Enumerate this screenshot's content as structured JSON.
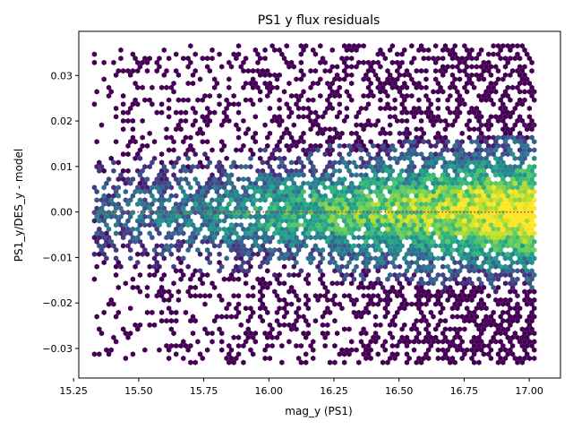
{
  "chart_data": {
    "type": "hexbin",
    "title": "PS1 y flux residuals",
    "xlabel": "mag_y (PS1)",
    "ylabel": "PS1_y/DES_y - model",
    "xlim": [
      15.27,
      17.12
    ],
    "ylim": [
      -0.0365,
      0.0397
    ],
    "x_ticks": [
      15.25,
      15.5,
      15.75,
      16.0,
      16.25,
      16.5,
      16.75,
      17.0
    ],
    "x_tick_labels": [
      "15.25",
      "15.50",
      "15.75",
      "16.00",
      "16.25",
      "16.50",
      "16.75",
      "17.00"
    ],
    "y_ticks": [
      -0.03,
      -0.02,
      -0.01,
      0.0,
      0.01,
      0.02,
      0.03
    ],
    "y_tick_labels": [
      "−0.03",
      "−0.02",
      "−0.01",
      "0.00",
      "0.01",
      "0.02",
      "0.03"
    ],
    "grid": false,
    "colormap": "viridis",
    "data_x_range": [
      15.33,
      17.02
    ],
    "data_y_range": [
      -0.0335,
      0.0365
    ],
    "density_trend": "point density rises with magnitude, densest near y = 0 around mag 16.4–16.9",
    "reference_line": {
      "y": 0.0,
      "style": "dotted",
      "color": "#d62728"
    }
  }
}
